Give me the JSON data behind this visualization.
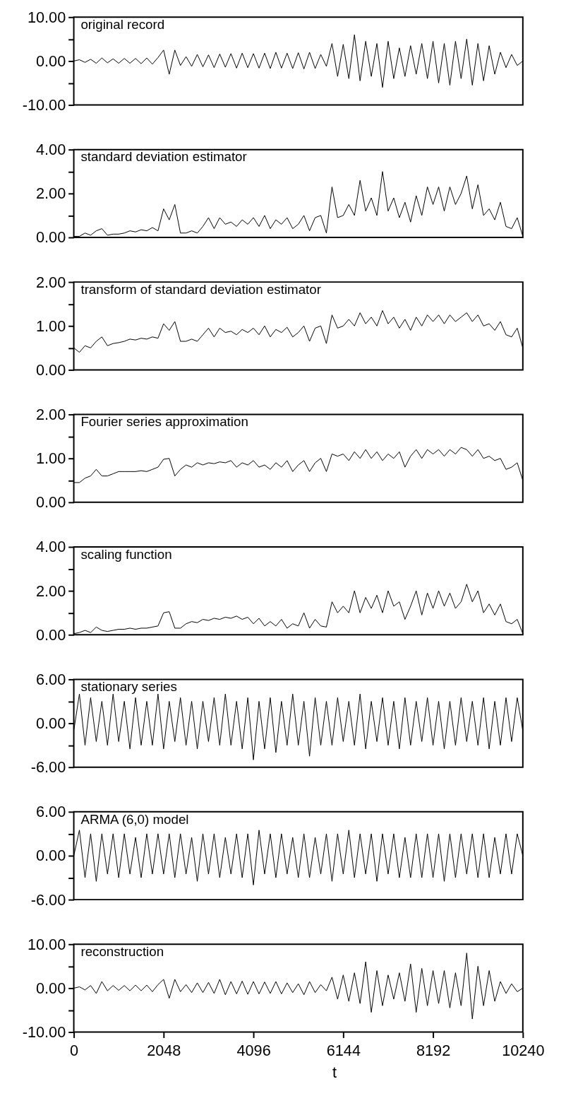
{
  "chart_data": [
    {
      "type": "line",
      "title": "original record",
      "tick_labels": "y",
      "xlim": [
        0,
        10240
      ],
      "ylim": [
        -10,
        10
      ],
      "yticks": [
        {
          "value": -10,
          "label": "-10.00"
        },
        {
          "value": -5,
          "label": null
        },
        {
          "value": 0,
          "label": "0.00"
        },
        {
          "value": 5,
          "label": null
        },
        {
          "value": 10,
          "label": "10.00"
        }
      ],
      "x": [
        0,
        128,
        256,
        384,
        512,
        640,
        768,
        896,
        1024,
        1152,
        1280,
        1408,
        1536,
        1664,
        1792,
        1920,
        2048,
        2176,
        2304,
        2432,
        2560,
        2688,
        2816,
        2944,
        3072,
        3200,
        3328,
        3456,
        3584,
        3712,
        3840,
        3968,
        4096,
        4224,
        4352,
        4480,
        4608,
        4736,
        4864,
        4992,
        5120,
        5248,
        5376,
        5504,
        5632,
        5760,
        5888,
        6016,
        6144,
        6272,
        6400,
        6528,
        6656,
        6784,
        6912,
        7040,
        7168,
        7296,
        7424,
        7552,
        7680,
        7808,
        7936,
        8064,
        8192,
        8320,
        8448,
        8576,
        8704,
        8832,
        8960,
        9088,
        9216,
        9344,
        9472,
        9600,
        9728,
        9856,
        9984,
        10112,
        10240
      ],
      "series": [
        {
          "color": "#000000",
          "values": [
            0,
            0.3,
            -0.3,
            0.4,
            -0.5,
            0.7,
            -0.4,
            0.5,
            -0.5,
            0.6,
            -0.5,
            0.6,
            -0.6,
            0.7,
            -0.7,
            0.8,
            2.5,
            -3.0,
            2.5,
            -1.0,
            1.0,
            -1.2,
            1.5,
            -1.3,
            1.4,
            -1.5,
            1.6,
            -1.4,
            1.7,
            -1.6,
            1.8,
            -1.5,
            1.7,
            -1.6,
            1.8,
            -1.7,
            2.0,
            -1.6,
            1.8,
            -1.7,
            1.9,
            -1.8,
            2.0,
            -1.7,
            1.5,
            -1.2,
            4.0,
            -3.5,
            3.8,
            -4.0,
            6.0,
            -4.5,
            4.5,
            -3.5,
            4.0,
            -6.0,
            4.5,
            -4.0,
            3.0,
            -3.5,
            3.5,
            -3.0,
            4.0,
            -4.0,
            4.5,
            -5.0,
            4.0,
            -5.5,
            4.5,
            -4.0,
            5.0,
            -5.5,
            4.0,
            -4.5,
            3.5,
            -3.0,
            2.0,
            -1.5,
            1.5,
            -1.0,
            0
          ]
        }
      ]
    },
    {
      "type": "line",
      "title": "standard deviation estimator",
      "tick_labels": "y",
      "xlim": [
        0,
        10240
      ],
      "ylim": [
        0,
        4
      ],
      "yticks": [
        {
          "value": 0,
          "label": "0.00"
        },
        {
          "value": 1,
          "label": null
        },
        {
          "value": 2,
          "label": "2.00"
        },
        {
          "value": 3,
          "label": null
        },
        {
          "value": 4,
          "label": "4.00"
        }
      ],
      "x": [
        0,
        128,
        256,
        384,
        512,
        640,
        768,
        896,
        1024,
        1152,
        1280,
        1408,
        1536,
        1664,
        1792,
        1920,
        2048,
        2176,
        2304,
        2432,
        2560,
        2688,
        2816,
        2944,
        3072,
        3200,
        3328,
        3456,
        3584,
        3712,
        3840,
        3968,
        4096,
        4224,
        4352,
        4480,
        4608,
        4736,
        4864,
        4992,
        5120,
        5248,
        5376,
        5504,
        5632,
        5760,
        5888,
        6016,
        6144,
        6272,
        6400,
        6528,
        6656,
        6784,
        6912,
        7040,
        7168,
        7296,
        7424,
        7552,
        7680,
        7808,
        7936,
        8064,
        8192,
        8320,
        8448,
        8576,
        8704,
        8832,
        8960,
        9088,
        9216,
        9344,
        9472,
        9600,
        9728,
        9856,
        9984,
        10112,
        10240
      ],
      "series": [
        {
          "color": "#000000",
          "values": [
            0.05,
            0.05,
            0.2,
            0.1,
            0.3,
            0.4,
            0.1,
            0.15,
            0.15,
            0.2,
            0.3,
            0.25,
            0.35,
            0.3,
            0.45,
            0.3,
            1.3,
            0.8,
            1.5,
            0.2,
            0.2,
            0.3,
            0.2,
            0.5,
            0.9,
            0.4,
            0.9,
            0.6,
            0.7,
            0.5,
            0.8,
            0.6,
            0.9,
            0.5,
            1.0,
            0.4,
            0.8,
            0.6,
            0.9,
            0.4,
            0.6,
            1.0,
            0.3,
            0.9,
            1.0,
            0.2,
            2.3,
            0.9,
            1.0,
            1.5,
            1.0,
            2.6,
            1.2,
            1.8,
            1.0,
            3.0,
            1.2,
            1.8,
            0.9,
            1.6,
            0.7,
            1.9,
            1.0,
            2.3,
            1.5,
            2.3,
            1.2,
            2.3,
            1.5,
            2.0,
            2.8,
            1.3,
            2.4,
            1.0,
            1.3,
            0.8,
            1.6,
            0.5,
            0.4,
            0.9,
            0.05
          ]
        }
      ]
    },
    {
      "type": "line",
      "title": "transform of standard deviation estimator",
      "tick_labels": "y",
      "xlim": [
        0,
        10240
      ],
      "ylim": [
        0,
        2
      ],
      "yticks": [
        {
          "value": 0,
          "label": "0.00"
        },
        {
          "value": 0.5,
          "label": null
        },
        {
          "value": 1,
          "label": "1.00"
        },
        {
          "value": 1.5,
          "label": null
        },
        {
          "value": 2,
          "label": "2.00"
        }
      ],
      "x": [
        0,
        128,
        256,
        384,
        512,
        640,
        768,
        896,
        1024,
        1152,
        1280,
        1408,
        1536,
        1664,
        1792,
        1920,
        2048,
        2176,
        2304,
        2432,
        2560,
        2688,
        2816,
        2944,
        3072,
        3200,
        3328,
        3456,
        3584,
        3712,
        3840,
        3968,
        4096,
        4224,
        4352,
        4480,
        4608,
        4736,
        4864,
        4992,
        5120,
        5248,
        5376,
        5504,
        5632,
        5760,
        5888,
        6016,
        6144,
        6272,
        6400,
        6528,
        6656,
        6784,
        6912,
        7040,
        7168,
        7296,
        7424,
        7552,
        7680,
        7808,
        7936,
        8064,
        8192,
        8320,
        8448,
        8576,
        8704,
        8832,
        8960,
        9088,
        9216,
        9344,
        9472,
        9600,
        9728,
        9856,
        9984,
        10112,
        10240
      ],
      "series": [
        {
          "color": "#000000",
          "values": [
            0.5,
            0.4,
            0.55,
            0.5,
            0.65,
            0.75,
            0.55,
            0.6,
            0.62,
            0.65,
            0.7,
            0.68,
            0.72,
            0.7,
            0.75,
            0.72,
            1.05,
            0.9,
            1.1,
            0.65,
            0.65,
            0.7,
            0.65,
            0.8,
            0.95,
            0.75,
            0.95,
            0.85,
            0.88,
            0.8,
            0.92,
            0.85,
            0.95,
            0.8,
            1.0,
            0.75,
            0.92,
            0.85,
            0.97,
            0.75,
            0.85,
            1.0,
            0.65,
            0.95,
            1.0,
            0.6,
            1.25,
            0.95,
            1.0,
            1.15,
            1.0,
            1.3,
            1.05,
            1.2,
            1.0,
            1.35,
            1.05,
            1.2,
            0.95,
            1.15,
            0.9,
            1.2,
            1.0,
            1.25,
            1.1,
            1.25,
            1.05,
            1.25,
            1.1,
            1.2,
            1.3,
            1.1,
            1.25,
            1.0,
            1.05,
            0.9,
            1.1,
            0.8,
            0.75,
            0.95,
            0.5
          ]
        }
      ]
    },
    {
      "type": "line",
      "title": "Fourier series approximation",
      "tick_labels": "y",
      "xlim": [
        0,
        10240
      ],
      "ylim": [
        0,
        2
      ],
      "yticks": [
        {
          "value": 0,
          "label": "0.00"
        },
        {
          "value": 0.5,
          "label": null
        },
        {
          "value": 1,
          "label": "1.00"
        },
        {
          "value": 1.5,
          "label": null
        },
        {
          "value": 2,
          "label": "2.00"
        }
      ],
      "x": [
        0,
        128,
        256,
        384,
        512,
        640,
        768,
        896,
        1024,
        1152,
        1280,
        1408,
        1536,
        1664,
        1792,
        1920,
        2048,
        2176,
        2304,
        2432,
        2560,
        2688,
        2816,
        2944,
        3072,
        3200,
        3328,
        3456,
        3584,
        3712,
        3840,
        3968,
        4096,
        4224,
        4352,
        4480,
        4608,
        4736,
        4864,
        4992,
        5120,
        5248,
        5376,
        5504,
        5632,
        5760,
        5888,
        6016,
        6144,
        6272,
        6400,
        6528,
        6656,
        6784,
        6912,
        7040,
        7168,
        7296,
        7424,
        7552,
        7680,
        7808,
        7936,
        8064,
        8192,
        8320,
        8448,
        8576,
        8704,
        8832,
        8960,
        9088,
        9216,
        9344,
        9472,
        9600,
        9728,
        9856,
        9984,
        10112,
        10240
      ],
      "series": [
        {
          "color": "#000000",
          "values": [
            0.45,
            0.45,
            0.55,
            0.6,
            0.75,
            0.6,
            0.6,
            0.65,
            0.7,
            0.7,
            0.7,
            0.7,
            0.72,
            0.7,
            0.75,
            0.8,
            0.98,
            1.0,
            0.6,
            0.75,
            0.85,
            0.8,
            0.9,
            0.85,
            0.9,
            0.88,
            0.92,
            0.9,
            0.95,
            0.8,
            0.9,
            0.85,
            0.95,
            0.8,
            0.85,
            0.75,
            0.9,
            0.8,
            0.95,
            0.7,
            0.85,
            0.95,
            0.7,
            0.9,
            1.0,
            0.7,
            1.1,
            1.05,
            1.1,
            0.95,
            1.15,
            1.0,
            1.2,
            1.0,
            1.15,
            0.95,
            1.1,
            1.0,
            1.15,
            0.8,
            1.05,
            1.2,
            1.0,
            1.2,
            1.1,
            1.2,
            1.05,
            1.2,
            1.1,
            1.25,
            1.2,
            1.05,
            1.2,
            1.0,
            1.05,
            0.95,
            1.0,
            0.75,
            0.8,
            0.9,
            0.5
          ]
        }
      ]
    },
    {
      "type": "line",
      "title": "scaling function",
      "tick_labels": "y",
      "xlim": [
        0,
        10240
      ],
      "ylim": [
        0,
        4
      ],
      "yticks": [
        {
          "value": 0,
          "label": "0.00"
        },
        {
          "value": 1,
          "label": null
        },
        {
          "value": 2,
          "label": "2.00"
        },
        {
          "value": 3,
          "label": null
        },
        {
          "value": 4,
          "label": "4.00"
        }
      ],
      "x": [
        0,
        128,
        256,
        384,
        512,
        640,
        768,
        896,
        1024,
        1152,
        1280,
        1408,
        1536,
        1664,
        1792,
        1920,
        2048,
        2176,
        2304,
        2432,
        2560,
        2688,
        2816,
        2944,
        3072,
        3200,
        3328,
        3456,
        3584,
        3712,
        3840,
        3968,
        4096,
        4224,
        4352,
        4480,
        4608,
        4736,
        4864,
        4992,
        5120,
        5248,
        5376,
        5504,
        5632,
        5760,
        5888,
        6016,
        6144,
        6272,
        6400,
        6528,
        6656,
        6784,
        6912,
        7040,
        7168,
        7296,
        7424,
        7552,
        7680,
        7808,
        7936,
        8064,
        8192,
        8320,
        8448,
        8576,
        8704,
        8832,
        8960,
        9088,
        9216,
        9344,
        9472,
        9600,
        9728,
        9856,
        9984,
        10112,
        10240
      ],
      "series": [
        {
          "color": "#000000",
          "values": [
            0.05,
            0.1,
            0.2,
            0.1,
            0.35,
            0.2,
            0.15,
            0.2,
            0.25,
            0.25,
            0.3,
            0.25,
            0.3,
            0.3,
            0.35,
            0.4,
            1.0,
            1.05,
            0.3,
            0.3,
            0.5,
            0.6,
            0.55,
            0.7,
            0.65,
            0.75,
            0.7,
            0.8,
            0.75,
            0.85,
            0.7,
            0.8,
            0.5,
            0.75,
            0.4,
            0.6,
            0.4,
            0.7,
            0.3,
            0.5,
            0.4,
            1.0,
            0.3,
            0.7,
            0.4,
            0.35,
            1.5,
            1.0,
            1.3,
            1.0,
            2.0,
            1.0,
            1.7,
            1.2,
            1.8,
            1.0,
            2.0,
            1.3,
            1.5,
            0.7,
            1.3,
            2.0,
            0.9,
            1.9,
            1.2,
            2.0,
            1.3,
            1.9,
            1.2,
            1.5,
            2.3,
            1.5,
            2.0,
            1.0,
            1.4,
            0.9,
            1.4,
            0.6,
            0.5,
            0.7,
            0.05
          ]
        }
      ]
    },
    {
      "type": "line",
      "title": "stationary series",
      "tick_labels": "y",
      "xlim": [
        0,
        10240
      ],
      "ylim": [
        -6,
        6
      ],
      "yticks": [
        {
          "value": -6,
          "label": "-6.00"
        },
        {
          "value": -3,
          "label": null
        },
        {
          "value": 0,
          "label": "0.00"
        },
        {
          "value": 3,
          "label": null
        },
        {
          "value": 6,
          "label": "6.00"
        }
      ],
      "x": [
        0,
        128,
        256,
        384,
        512,
        640,
        768,
        896,
        1024,
        1152,
        1280,
        1408,
        1536,
        1664,
        1792,
        1920,
        2048,
        2176,
        2304,
        2432,
        2560,
        2688,
        2816,
        2944,
        3072,
        3200,
        3328,
        3456,
        3584,
        3712,
        3840,
        3968,
        4096,
        4224,
        4352,
        4480,
        4608,
        4736,
        4864,
        4992,
        5120,
        5248,
        5376,
        5504,
        5632,
        5760,
        5888,
        6016,
        6144,
        6272,
        6400,
        6528,
        6656,
        6784,
        6912,
        7040,
        7168,
        7296,
        7424,
        7552,
        7680,
        7808,
        7936,
        8064,
        8192,
        8320,
        8448,
        8576,
        8704,
        8832,
        8960,
        9088,
        9216,
        9344,
        9472,
        9600,
        9728,
        9856,
        9984,
        10112,
        10240
      ],
      "series": [
        {
          "color": "#000000",
          "values": [
            -1.0,
            4.0,
            -3.0,
            3.5,
            -2.5,
            3.0,
            -3.0,
            4.0,
            -2.5,
            3.0,
            -3.5,
            3.5,
            -3.0,
            3.0,
            -3.0,
            4.0,
            -3.5,
            3.0,
            -2.5,
            3.5,
            -3.0,
            3.0,
            -3.5,
            3.0,
            -2.5,
            3.5,
            -3.0,
            4.0,
            -3.0,
            3.0,
            -3.5,
            3.5,
            -5.0,
            3.0,
            -3.5,
            3.5,
            -4.0,
            3.0,
            -3.0,
            4.0,
            -3.0,
            3.0,
            -4.5,
            3.5,
            -3.0,
            3.0,
            -3.0,
            3.5,
            -2.5,
            3.0,
            -3.0,
            4.0,
            -3.5,
            3.0,
            -2.5,
            3.5,
            -3.0,
            3.0,
            -3.5,
            3.5,
            -3.0,
            3.0,
            -2.5,
            3.5,
            -3.0,
            3.0,
            -3.5,
            3.0,
            -3.0,
            3.5,
            -2.5,
            3.0,
            -3.0,
            3.5,
            -3.5,
            3.0,
            -3.0,
            3.5,
            -2.5,
            3.5,
            -1.0
          ]
        }
      ]
    },
    {
      "type": "line",
      "title": "ARMA (6,0) model",
      "tick_labels": "y",
      "xlim": [
        0,
        10240
      ],
      "ylim": [
        -6,
        6
      ],
      "yticks": [
        {
          "value": -6,
          "label": "-6.00"
        },
        {
          "value": -3,
          "label": null
        },
        {
          "value": 0,
          "label": "0.00"
        },
        {
          "value": 3,
          "label": null
        },
        {
          "value": 6,
          "label": "6.00"
        }
      ],
      "x": [
        0,
        128,
        256,
        384,
        512,
        640,
        768,
        896,
        1024,
        1152,
        1280,
        1408,
        1536,
        1664,
        1792,
        1920,
        2048,
        2176,
        2304,
        2432,
        2560,
        2688,
        2816,
        2944,
        3072,
        3200,
        3328,
        3456,
        3584,
        3712,
        3840,
        3968,
        4096,
        4224,
        4352,
        4480,
        4608,
        4736,
        4864,
        4992,
        5120,
        5248,
        5376,
        5504,
        5632,
        5760,
        5888,
        6016,
        6144,
        6272,
        6400,
        6528,
        6656,
        6784,
        6912,
        7040,
        7168,
        7296,
        7424,
        7552,
        7680,
        7808,
        7936,
        8064,
        8192,
        8320,
        8448,
        8576,
        8704,
        8832,
        8960,
        9088,
        9216,
        9344,
        9472,
        9600,
        9728,
        9856,
        9984,
        10112,
        10240
      ],
      "series": [
        {
          "color": "#000000",
          "values": [
            0.0,
            3.5,
            -3.0,
            3.0,
            -3.5,
            3.0,
            -2.5,
            3.0,
            -3.0,
            3.0,
            -2.5,
            2.5,
            -3.0,
            3.0,
            -2.5,
            3.0,
            -2.5,
            3.0,
            -3.0,
            3.0,
            -2.5,
            2.5,
            -3.5,
            3.0,
            -2.5,
            3.0,
            -3.0,
            2.5,
            -2.5,
            3.0,
            -3.0,
            3.0,
            -4.0,
            3.5,
            -2.5,
            3.0,
            -3.0,
            3.0,
            -2.5,
            2.5,
            -3.0,
            3.0,
            -3.0,
            2.5,
            -2.5,
            3.0,
            -3.5,
            3.0,
            -2.5,
            3.5,
            -3.0,
            3.0,
            -2.5,
            3.0,
            -3.5,
            3.0,
            -2.5,
            3.0,
            -3.0,
            2.5,
            -3.0,
            3.0,
            -3.0,
            3.0,
            -3.0,
            3.0,
            -3.5,
            3.0,
            -3.0,
            3.0,
            -2.5,
            3.0,
            -3.0,
            3.0,
            -3.0,
            2.5,
            -2.5,
            3.0,
            -2.5,
            3.0,
            0.0
          ]
        }
      ]
    },
    {
      "type": "line",
      "title": "reconstruction",
      "xlabel": "t",
      "xlim": [
        0,
        10240
      ],
      "xticks": [
        0,
        2048,
        4096,
        6144,
        8192,
        10240
      ],
      "ylim": [
        -10,
        10
      ],
      "yticks": [
        {
          "value": -10,
          "label": "-10.00"
        },
        {
          "value": -5,
          "label": null
        },
        {
          "value": 0,
          "label": "0.00"
        },
        {
          "value": 5,
          "label": null
        },
        {
          "value": 10,
          "label": "10.00"
        }
      ],
      "x": [
        0,
        128,
        256,
        384,
        512,
        640,
        768,
        896,
        1024,
        1152,
        1280,
        1408,
        1536,
        1664,
        1792,
        1920,
        2048,
        2176,
        2304,
        2432,
        2560,
        2688,
        2816,
        2944,
        3072,
        3200,
        3328,
        3456,
        3584,
        3712,
        3840,
        3968,
        4096,
        4224,
        4352,
        4480,
        4608,
        4736,
        4864,
        4992,
        5120,
        5248,
        5376,
        5504,
        5632,
        5760,
        5888,
        6016,
        6144,
        6272,
        6400,
        6528,
        6656,
        6784,
        6912,
        7040,
        7168,
        7296,
        7424,
        7552,
        7680,
        7808,
        7936,
        8064,
        8192,
        8320,
        8448,
        8576,
        8704,
        8832,
        8960,
        9088,
        9216,
        9344,
        9472,
        9600,
        9728,
        9856,
        9984,
        10112,
        10240
      ],
      "series": [
        {
          "color": "#000000",
          "values": [
            0,
            0.3,
            -0.4,
            0.6,
            -1.2,
            1.5,
            -0.6,
            0.6,
            -0.5,
            0.6,
            -0.6,
            0.7,
            -0.6,
            0.7,
            -0.8,
            0.8,
            2.0,
            -2.3,
            2.0,
            -0.8,
            0.8,
            -1.0,
            1.2,
            -1.0,
            1.3,
            -1.2,
            2.0,
            -1.5,
            1.5,
            -1.3,
            1.6,
            -1.4,
            1.5,
            -1.3,
            1.4,
            -1.2,
            1.5,
            -1.3,
            1.2,
            -1.0,
            1.0,
            -1.5,
            1.5,
            -1.0,
            0.8,
            -0.6,
            2.5,
            -2.5,
            3.0,
            -3.0,
            3.5,
            -3.5,
            6.0,
            -5.5,
            4.0,
            -4.0,
            3.0,
            -2.5,
            3.5,
            -3.0,
            5.5,
            -5.5,
            4.5,
            -4.0,
            4.0,
            -3.5,
            4.0,
            -4.5,
            3.5,
            -4.0,
            8.0,
            -7.0,
            5.0,
            -4.0,
            4.0,
            -3.0,
            1.5,
            -1.2,
            1.0,
            -0.8,
            0.0
          ]
        }
      ]
    }
  ]
}
